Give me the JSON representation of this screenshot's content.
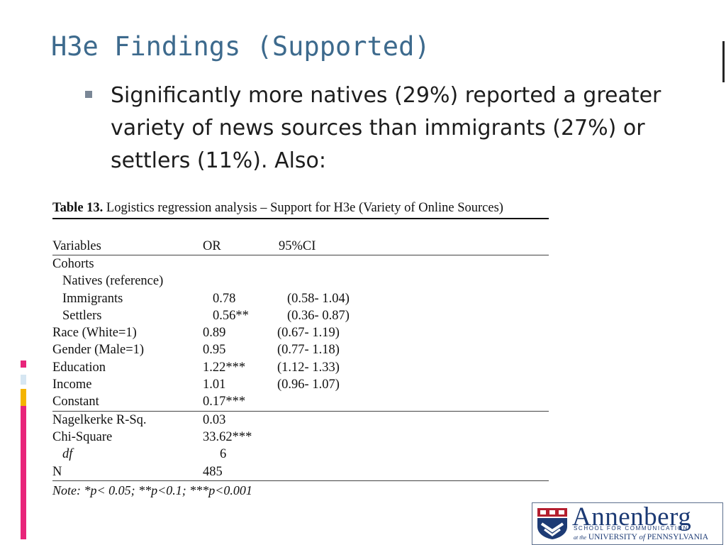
{
  "slide": {
    "title": "H3e Findings (Supported)",
    "bullet": "Significantly more natives (29%) reported a greater variety of news sources than immigrants (27%) or settlers (11%). Also:"
  },
  "table": {
    "caption_label": "Table 13.",
    "caption_text": " Logistics regression analysis – Support for H3e (Variety of Online Sources)",
    "headers": [
      "Variables",
      "OR",
      "95%CI"
    ],
    "rows": [
      {
        "variable": "Cohorts",
        "or": "",
        "ci": "",
        "indent": false
      },
      {
        "variable": "Natives (reference)",
        "or": "",
        "ci": "",
        "indent": true
      },
      {
        "variable": "Immigrants",
        "or": "0.78",
        "ci": "(0.58- 1.04)",
        "indent": true
      },
      {
        "variable": "Settlers",
        "or": "0.56**",
        "ci": "(0.36- 0.87)",
        "indent": true
      },
      {
        "variable": "Race (White=1)",
        "or": "0.89",
        "ci": "(0.67- 1.19)",
        "indent": false
      },
      {
        "variable": "Gender (Male=1)",
        "or": "0.95",
        "ci": "(0.77- 1.18)",
        "indent": false
      },
      {
        "variable": "Education",
        "or": "1.22***",
        "ci": "(1.12- 1.33)",
        "indent": false
      },
      {
        "variable": "Income",
        "or": "1.01",
        "ci": "(0.96- 1.07)",
        "indent": false
      },
      {
        "variable": "Constant",
        "or": "0.17***",
        "ci": "",
        "indent": false
      }
    ],
    "stats": [
      {
        "variable": "Nagelkerke R-Sq.",
        "or": "0.03",
        "indent": false
      },
      {
        "variable": "Chi-Square",
        "or": "33.62***",
        "indent": false
      },
      {
        "variable": "df",
        "or": "6",
        "indent": true
      },
      {
        "variable": "N",
        "or": "485",
        "indent": false
      }
    ],
    "note": "Note: *p< 0.05; **p<0.1; ***p<0.001"
  },
  "logo": {
    "name": "Annenberg",
    "school": "SCHOOL FOR COMMUNICATION",
    "at_the": "at the",
    "university": "UNIVERSITY",
    "of": "of",
    "penn": "PENNSYLVANIA"
  },
  "colors": {
    "title": "#3d6a8d",
    "accent_pink": "#e8257a",
    "accent_light_blue": "#d6e6f2",
    "accent_orange": "#f4b400",
    "logo_navy": "#1d3b75",
    "logo_red": "#b41f2f"
  },
  "icons": [
    "square-bullet-icon",
    "annenberg-crest-icon"
  ]
}
